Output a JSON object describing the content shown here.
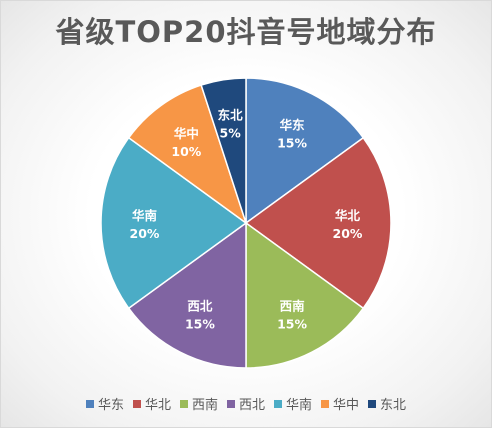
{
  "chart_data": {
    "type": "pie",
    "title": "省级TOP20抖音号地域分布",
    "legend_position": "bottom",
    "slices": [
      {
        "name": "华东",
        "value": 15,
        "label": "15%",
        "color": "#4f81bd"
      },
      {
        "name": "华北",
        "value": 20,
        "label": "20%",
        "color": "#c0504d"
      },
      {
        "name": "西南",
        "value": 15,
        "label": "15%",
        "color": "#9bbb59"
      },
      {
        "name": "西北",
        "value": 15,
        "label": "15%",
        "color": "#8064a2"
      },
      {
        "name": "华南",
        "value": 20,
        "label": "20%",
        "color": "#4bacc6"
      },
      {
        "name": "华中",
        "value": 10,
        "label": "10%",
        "color": "#f79646"
      },
      {
        "name": "东北",
        "value": 5,
        "label": "5%",
        "color": "#1f497d"
      }
    ]
  }
}
